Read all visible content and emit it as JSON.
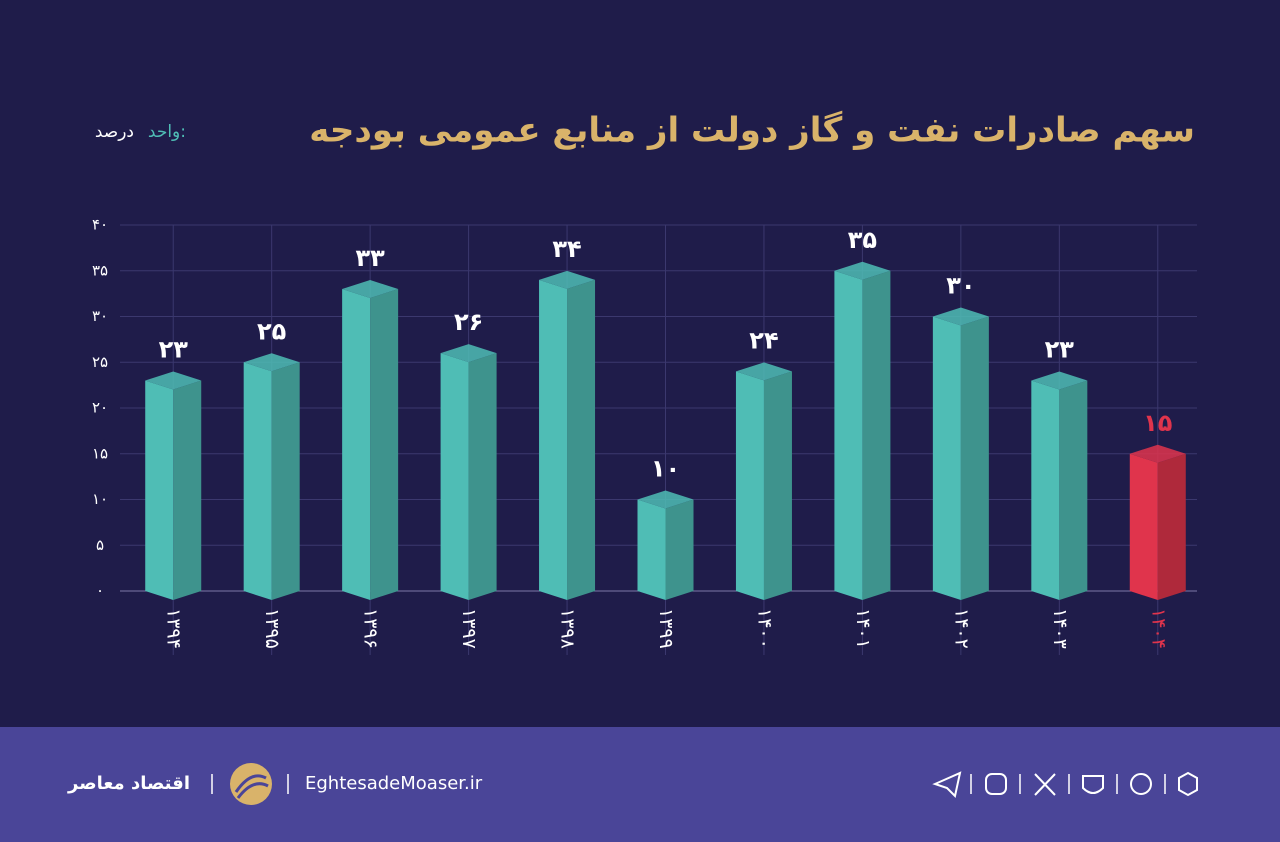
{
  "chart_data": {
    "type": "bar",
    "title": "سهم صادرات نفت و گاز دولت از منابع عمومی بودجه",
    "unit_label": "واحد:",
    "unit": "درصد",
    "categories": [
      "۱۳۹۴",
      "۱۳۹۵",
      "۱۳۹۶",
      "۱۳۹۷",
      "۱۳۹۸",
      "۱۳۹۹",
      "۱۴۰۰",
      "۱۴۰۱",
      "۱۴۰۲",
      "۱۴۰۳",
      "۱۴۰۴"
    ],
    "values": [
      23,
      25,
      33,
      26,
      34,
      10,
      24,
      35,
      30,
      23,
      15
    ],
    "value_labels": [
      "۲۳",
      "۲۵",
      "۳۳",
      "۲۶",
      "۳۴",
      "۱۰",
      "۲۴",
      "۳۵",
      "۳۰",
      "۲۳",
      "۱۵"
    ],
    "colors": [
      "#4fbdb5",
      "#4fbdb5",
      "#4fbdb5",
      "#4fbdb5",
      "#4fbdb5",
      "#4fbdb5",
      "#4fbdb5",
      "#4fbdb5",
      "#4fbdb5",
      "#4fbdb5",
      "#e0344c"
    ],
    "ylim": [
      0,
      40
    ],
    "yticks": [
      {
        "value": 0,
        "label": "۰"
      },
      {
        "value": 5,
        "label": "۵"
      },
      {
        "value": 10,
        "label": "۱۰"
      },
      {
        "value": 15,
        "label": "۱۵"
      },
      {
        "value": 20,
        "label": "۲۰"
      },
      {
        "value": 25,
        "label": "۲۵"
      },
      {
        "value": 30,
        "label": "۳۰"
      },
      {
        "value": 35,
        "label": "۳۵"
      },
      {
        "value": 40,
        "label": "۴۰"
      }
    ],
    "grid": true
  },
  "footer": {
    "brand": "اقتصاد معاصر",
    "website": "EghtesadeMoaser.ir"
  }
}
